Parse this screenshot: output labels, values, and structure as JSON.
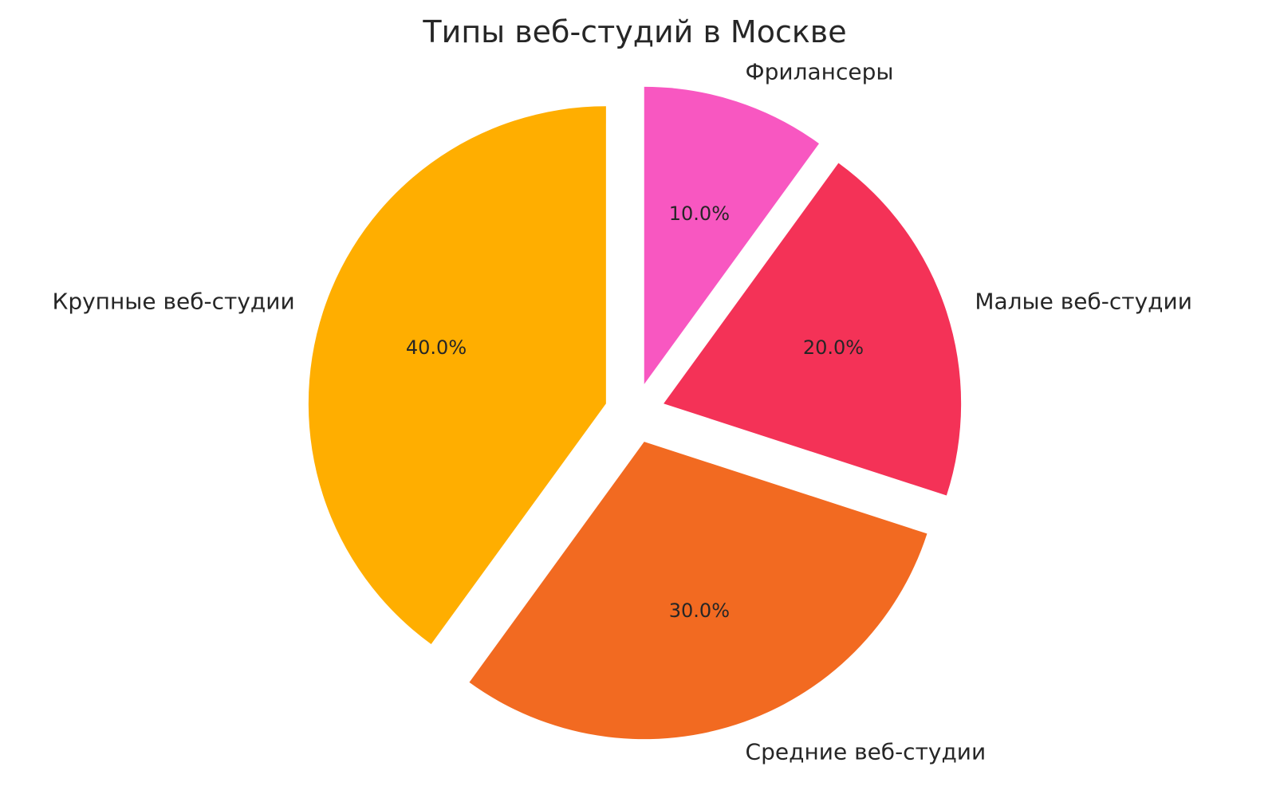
{
  "chart_data": {
    "type": "pie",
    "title": "Типы веб-студий в Москве",
    "categories": [
      "Крупные веб-студии",
      "Средние веб-студии",
      "Малые веб-студии",
      "Фрилансеры"
    ],
    "values": [
      40,
      30,
      20,
      10
    ],
    "percent_labels": [
      "40.0%",
      "30.0%",
      "20.0%",
      "10.0%"
    ],
    "colors": [
      "#FFAE00",
      "#F26A21",
      "#F43257",
      "#F857C1"
    ],
    "start_angle": 90,
    "direction": "counterclockwise",
    "exploded": true,
    "legend": "none"
  }
}
